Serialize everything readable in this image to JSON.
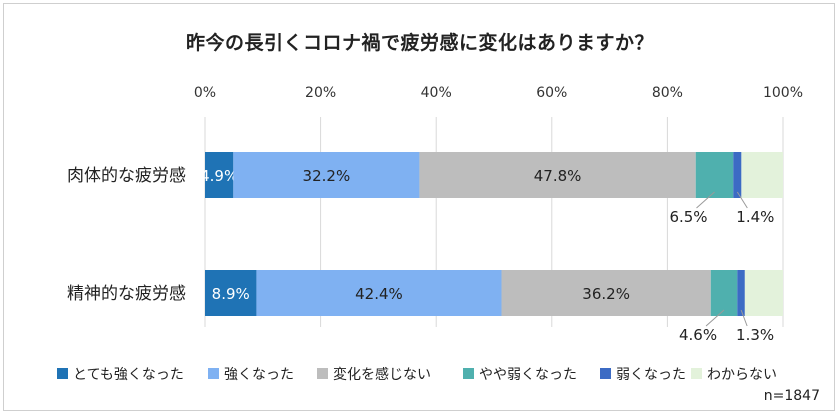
{
  "chart_data": {
    "type": "bar",
    "orientation": "horizontal",
    "stacked": true,
    "title": "昨今の長引くコロナ禍で疲労感に変化はありますか？",
    "xlim": [
      0,
      100
    ],
    "x_ticks": [
      "0%",
      "20%",
      "40%",
      "60%",
      "80%",
      "100%"
    ],
    "grid": true,
    "legend_position": "bottom",
    "categories": [
      "肉体的な疲労感",
      "精神的な疲労感"
    ],
    "series": [
      {
        "name": "とても強くなった",
        "color": "#1f73b5",
        "values": [
          4.9,
          8.9
        ],
        "labels": [
          "4.9%",
          "8.9%"
        ]
      },
      {
        "name": "強くなった",
        "color": "#7fb1f2",
        "values": [
          32.2,
          42.4
        ],
        "labels": [
          "32.2%",
          "42.4%"
        ]
      },
      {
        "name": "変化を感じない",
        "color": "#bdbdbd",
        "values": [
          47.8,
          36.2
        ],
        "labels": [
          "47.8%",
          "36.2%"
        ]
      },
      {
        "name": "やや弱くなった",
        "color": "#4fb0ae",
        "values": [
          6.5,
          4.6
        ],
        "labels": [
          "6.5%",
          "4.6%"
        ]
      },
      {
        "name": "弱くなった",
        "color": "#3c6bc4",
        "values": [
          1.4,
          1.3
        ],
        "labels": [
          "1.4%",
          "1.3%"
        ]
      },
      {
        "name": "わからない",
        "color": "#e3f2db",
        "values": [
          7.2,
          6.6
        ],
        "labels": [
          "",
          ""
        ]
      }
    ],
    "note": "n=1847"
  }
}
